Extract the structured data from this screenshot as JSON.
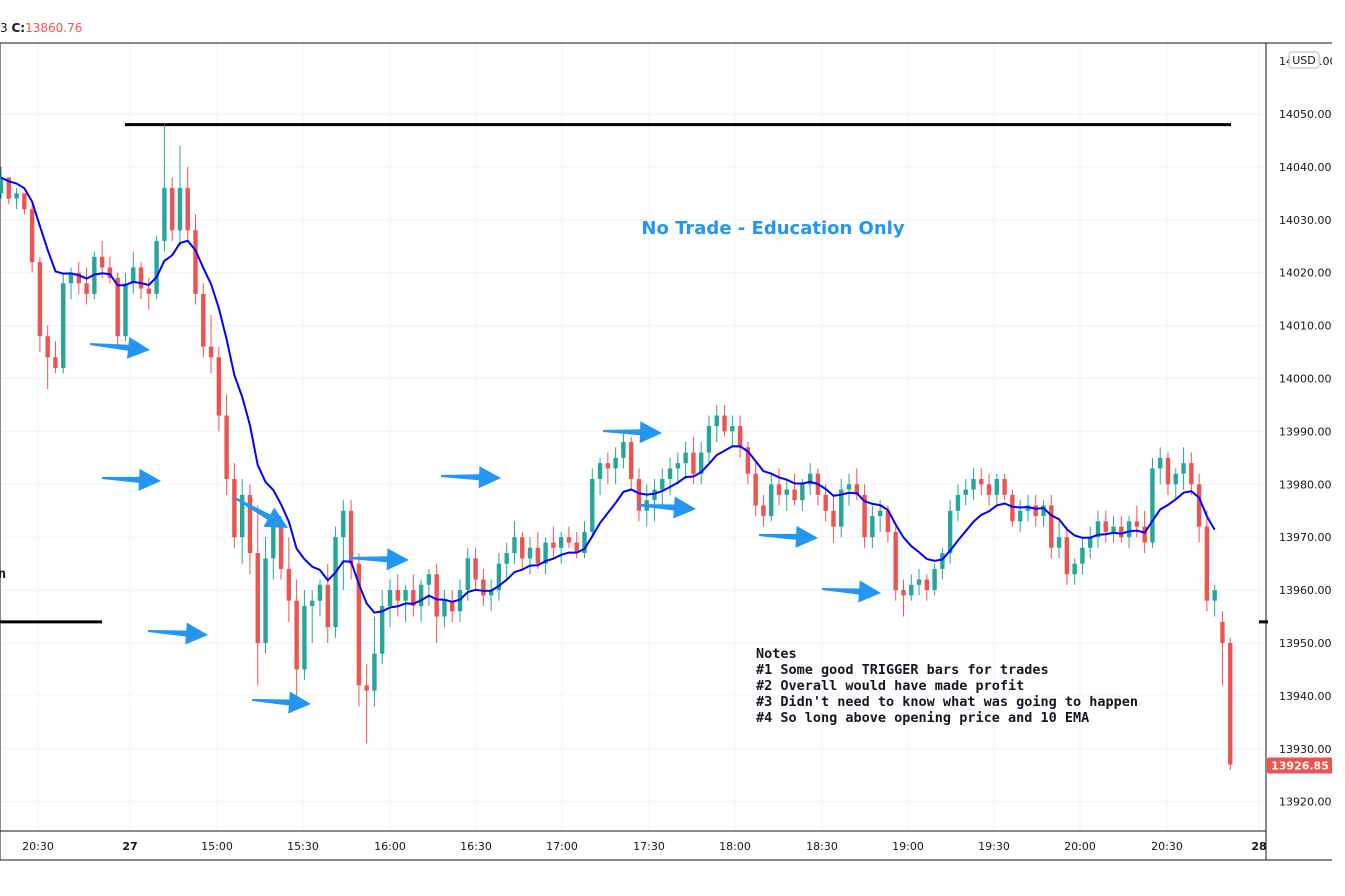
{
  "header": {
    "close_label": "C:",
    "close_value": "13860.76",
    "cut_prefix": "3"
  },
  "currency": "USD",
  "colors": {
    "up": "#26a69a",
    "down": "#ef5350",
    "ema": "#0000ff",
    "level": "#000000",
    "arrow": "#2196f3",
    "grid": "#f0f3fa",
    "annotation": "#2196f3"
  },
  "chart_data": {
    "type": "candlestick",
    "title": "",
    "y_ticks": [
      "14050.00",
      "14040.00",
      "14030.00",
      "14020.00",
      "14010.00",
      "14000.00",
      "13990.00",
      "13980.00",
      "13970.00",
      "13960.00",
      "13950.00",
      "13940.00",
      "13930.00",
      "13920.00"
    ],
    "x_ticks": [
      "20:30",
      "27",
      "15:00",
      "15:30",
      "16:00",
      "16:30",
      "17:00",
      "17:30",
      "18:00",
      "18:30",
      "19:00",
      "19:30",
      "20:00",
      "20:30",
      "28"
    ],
    "ylim": [
      13915,
      14060
    ],
    "last_price": "13926.85",
    "annotations": {
      "title": "No Trade - Education Only",
      "notes": [
        "Notes",
        "#1  Some good TRIGGER bars for trades",
        "#2  Overall would have made profit",
        "#3  Didn't need to know what was going to happen",
        "#4  So long above opening price and 10 EMA"
      ],
      "left_edge_text": "n"
    },
    "levels": [
      {
        "price": 14048
      },
      {
        "price": 13954
      }
    ],
    "series": [
      {
        "name": "10 EMA",
        "type": "line"
      }
    ],
    "candles": [
      {
        "o": 14035,
        "h": 14040,
        "l": 14034,
        "c": 14038
      },
      {
        "o": 14038,
        "h": 14038,
        "l": 14033,
        "c": 14034
      },
      {
        "o": 14034,
        "h": 14036,
        "l": 14032,
        "c": 14035
      },
      {
        "o": 14035,
        "h": 14035,
        "l": 14031,
        "c": 14032
      },
      {
        "o": 14032,
        "h": 14033,
        "l": 14020,
        "c": 14022
      },
      {
        "o": 14022,
        "h": 14023,
        "l": 14005,
        "c": 14008
      },
      {
        "o": 14008,
        "h": 14010,
        "l": 13998,
        "c": 14004
      },
      {
        "o": 14004,
        "h": 14007,
        "l": 14001,
        "c": 14002
      },
      {
        "o": 14002,
        "h": 14020,
        "l": 14001,
        "c": 14018
      },
      {
        "o": 14018,
        "h": 14021,
        "l": 14015,
        "c": 14020
      },
      {
        "o": 14020,
        "h": 14022,
        "l": 14016,
        "c": 14018
      },
      {
        "o": 14018,
        "h": 14021,
        "l": 14014,
        "c": 14016
      },
      {
        "o": 14016,
        "h": 14024,
        "l": 14015,
        "c": 14023
      },
      {
        "o": 14023,
        "h": 14026,
        "l": 14019,
        "c": 14021
      },
      {
        "o": 14021,
        "h": 14023,
        "l": 14018,
        "c": 14019
      },
      {
        "o": 14019,
        "h": 14020,
        "l": 14006,
        "c": 14008
      },
      {
        "o": 14008,
        "h": 14020,
        "l": 14007,
        "c": 14018
      },
      {
        "o": 14018,
        "h": 14024,
        "l": 14016,
        "c": 14021
      },
      {
        "o": 14021,
        "h": 14022,
        "l": 14015,
        "c": 14017
      },
      {
        "o": 14017,
        "h": 14019,
        "l": 14013,
        "c": 14016
      },
      {
        "o": 14016,
        "h": 14027,
        "l": 14015,
        "c": 14026
      },
      {
        "o": 14026,
        "h": 14048,
        "l": 14024,
        "c": 14036
      },
      {
        "o": 14036,
        "h": 14038,
        "l": 14026,
        "c": 14028
      },
      {
        "o": 14028,
        "h": 14044,
        "l": 14025,
        "c": 14036
      },
      {
        "o": 14036,
        "h": 14040,
        "l": 14026,
        "c": 14028
      },
      {
        "o": 14028,
        "h": 14031,
        "l": 14014,
        "c": 14016
      },
      {
        "o": 14016,
        "h": 14018,
        "l": 14004,
        "c": 14006
      },
      {
        "o": 14006,
        "h": 14012,
        "l": 14001,
        "c": 14004
      },
      {
        "o": 14004,
        "h": 14006,
        "l": 13990,
        "c": 13993
      },
      {
        "o": 13993,
        "h": 13997,
        "l": 13978,
        "c": 13981
      },
      {
        "o": 13981,
        "h": 13984,
        "l": 13968,
        "c": 13970
      },
      {
        "o": 13970,
        "h": 13981,
        "l": 13965,
        "c": 13978
      },
      {
        "o": 13978,
        "h": 13980,
        "l": 13963,
        "c": 13967
      },
      {
        "o": 13967,
        "h": 13976,
        "l": 13942,
        "c": 13950
      },
      {
        "o": 13950,
        "h": 13970,
        "l": 13948,
        "c": 13966
      },
      {
        "o": 13966,
        "h": 13975,
        "l": 13962,
        "c": 13972
      },
      {
        "o": 13972,
        "h": 13974,
        "l": 13962,
        "c": 13964
      },
      {
        "o": 13964,
        "h": 13970,
        "l": 13954,
        "c": 13958
      },
      {
        "o": 13958,
        "h": 13962,
        "l": 13940,
        "c": 13945
      },
      {
        "o": 13945,
        "h": 13960,
        "l": 13943,
        "c": 13957
      },
      {
        "o": 13957,
        "h": 13960,
        "l": 13950,
        "c": 13958
      },
      {
        "o": 13958,
        "h": 13962,
        "l": 13955,
        "c": 13961
      },
      {
        "o": 13961,
        "h": 13965,
        "l": 13950,
        "c": 13953
      },
      {
        "o": 13953,
        "h": 13972,
        "l": 13951,
        "c": 13970
      },
      {
        "o": 13970,
        "h": 13977,
        "l": 13960,
        "c": 13975
      },
      {
        "o": 13975,
        "h": 13977,
        "l": 13962,
        "c": 13965
      },
      {
        "o": 13965,
        "h": 13967,
        "l": 13938,
        "c": 13942
      },
      {
        "o": 13942,
        "h": 13946,
        "l": 13931,
        "c": 13941
      },
      {
        "o": 13941,
        "h": 13955,
        "l": 13938,
        "c": 13948
      },
      {
        "o": 13948,
        "h": 13960,
        "l": 13946,
        "c": 13957
      },
      {
        "o": 13957,
        "h": 13962,
        "l": 13953,
        "c": 13960
      },
      {
        "o": 13960,
        "h": 13963,
        "l": 13955,
        "c": 13958
      },
      {
        "o": 13958,
        "h": 13961,
        "l": 13954,
        "c": 13960
      },
      {
        "o": 13960,
        "h": 13963,
        "l": 13955,
        "c": 13957
      },
      {
        "o": 13957,
        "h": 13962,
        "l": 13954,
        "c": 13961
      },
      {
        "o": 13961,
        "h": 13964,
        "l": 13957,
        "c": 13963
      },
      {
        "o": 13963,
        "h": 13965,
        "l": 13950,
        "c": 13955
      },
      {
        "o": 13955,
        "h": 13960,
        "l": 13953,
        "c": 13958
      },
      {
        "o": 13958,
        "h": 13960,
        "l": 13954,
        "c": 13956
      },
      {
        "o": 13956,
        "h": 13962,
        "l": 13954,
        "c": 13960
      },
      {
        "o": 13960,
        "h": 13968,
        "l": 13958,
        "c": 13966
      },
      {
        "o": 13966,
        "h": 13968,
        "l": 13960,
        "c": 13962
      },
      {
        "o": 13962,
        "h": 13964,
        "l": 13957,
        "c": 13959
      },
      {
        "o": 13959,
        "h": 13962,
        "l": 13956,
        "c": 13960
      },
      {
        "o": 13960,
        "h": 13967,
        "l": 13958,
        "c": 13965
      },
      {
        "o": 13965,
        "h": 13969,
        "l": 13962,
        "c": 13967
      },
      {
        "o": 13967,
        "h": 13973,
        "l": 13965,
        "c": 13970
      },
      {
        "o": 13970,
        "h": 13971,
        "l": 13964,
        "c": 13966
      },
      {
        "o": 13966,
        "h": 13970,
        "l": 13963,
        "c": 13968
      },
      {
        "o": 13968,
        "h": 13971,
        "l": 13964,
        "c": 13965
      },
      {
        "o": 13965,
        "h": 13970,
        "l": 13963,
        "c": 13969
      },
      {
        "o": 13969,
        "h": 13972,
        "l": 13966,
        "c": 13968
      },
      {
        "o": 13968,
        "h": 13971,
        "l": 13965,
        "c": 13970
      },
      {
        "o": 13970,
        "h": 13972,
        "l": 13968,
        "c": 13969
      },
      {
        "o": 13969,
        "h": 13971,
        "l": 13966,
        "c": 13967
      },
      {
        "o": 13967,
        "h": 13973,
        "l": 13966,
        "c": 13971
      },
      {
        "o": 13971,
        "h": 13983,
        "l": 13970,
        "c": 13981
      },
      {
        "o": 13981,
        "h": 13985,
        "l": 13978,
        "c": 13984
      },
      {
        "o": 13984,
        "h": 13986,
        "l": 13980,
        "c": 13983
      },
      {
        "o": 13983,
        "h": 13987,
        "l": 13980,
        "c": 13985
      },
      {
        "o": 13985,
        "h": 13990,
        "l": 13983,
        "c": 13988
      },
      {
        "o": 13988,
        "h": 13989,
        "l": 13979,
        "c": 13981
      },
      {
        "o": 13981,
        "h": 13983,
        "l": 13973,
        "c": 13975
      },
      {
        "o": 13975,
        "h": 13980,
        "l": 13972,
        "c": 13977
      },
      {
        "o": 13977,
        "h": 13981,
        "l": 13973,
        "c": 13979
      },
      {
        "o": 13979,
        "h": 13983,
        "l": 13976,
        "c": 13981
      },
      {
        "o": 13981,
        "h": 13985,
        "l": 13978,
        "c": 13983
      },
      {
        "o": 13983,
        "h": 13986,
        "l": 13980,
        "c": 13984
      },
      {
        "o": 13984,
        "h": 13988,
        "l": 13981,
        "c": 13986
      },
      {
        "o": 13986,
        "h": 13989,
        "l": 13980,
        "c": 13982
      },
      {
        "o": 13982,
        "h": 13988,
        "l": 13980,
        "c": 13986
      },
      {
        "o": 13986,
        "h": 13993,
        "l": 13984,
        "c": 13991
      },
      {
        "o": 13991,
        "h": 13995,
        "l": 13988,
        "c": 13993
      },
      {
        "o": 13993,
        "h": 13995,
        "l": 13989,
        "c": 13990
      },
      {
        "o": 13990,
        "h": 13993,
        "l": 13987,
        "c": 13991
      },
      {
        "o": 13991,
        "h": 13993,
        "l": 13985,
        "c": 13987
      },
      {
        "o": 13987,
        "h": 13988,
        "l": 13980,
        "c": 13982
      },
      {
        "o": 13982,
        "h": 13984,
        "l": 13974,
        "c": 13976
      },
      {
        "o": 13976,
        "h": 13978,
        "l": 13972,
        "c": 13974
      },
      {
        "o": 13974,
        "h": 13982,
        "l": 13973,
        "c": 13980
      },
      {
        "o": 13980,
        "h": 13983,
        "l": 13976,
        "c": 13978
      },
      {
        "o": 13978,
        "h": 13981,
        "l": 13975,
        "c": 13979
      },
      {
        "o": 13979,
        "h": 13982,
        "l": 13976,
        "c": 13977
      },
      {
        "o": 13977,
        "h": 13981,
        "l": 13975,
        "c": 13980
      },
      {
        "o": 13980,
        "h": 13984,
        "l": 13978,
        "c": 13982
      },
      {
        "o": 13982,
        "h": 13983,
        "l": 13976,
        "c": 13978
      },
      {
        "o": 13978,
        "h": 13980,
        "l": 13973,
        "c": 13975
      },
      {
        "o": 13975,
        "h": 13978,
        "l": 13969,
        "c": 13972
      },
      {
        "o": 13972,
        "h": 13981,
        "l": 13970,
        "c": 13979
      },
      {
        "o": 13979,
        "h": 13982,
        "l": 13976,
        "c": 13980
      },
      {
        "o": 13980,
        "h": 13983,
        "l": 13977,
        "c": 13978
      },
      {
        "o": 13978,
        "h": 13980,
        "l": 13968,
        "c": 13970
      },
      {
        "o": 13970,
        "h": 13976,
        "l": 13968,
        "c": 13974
      },
      {
        "o": 13974,
        "h": 13977,
        "l": 13971,
        "c": 13975
      },
      {
        "o": 13975,
        "h": 13976,
        "l": 13969,
        "c": 13971
      },
      {
        "o": 13971,
        "h": 13972,
        "l": 13958,
        "c": 13960
      },
      {
        "o": 13960,
        "h": 13962,
        "l": 13955,
        "c": 13959
      },
      {
        "o": 13959,
        "h": 13963,
        "l": 13958,
        "c": 13961
      },
      {
        "o": 13961,
        "h": 13964,
        "l": 13959,
        "c": 13962
      },
      {
        "o": 13962,
        "h": 13963,
        "l": 13958,
        "c": 13960
      },
      {
        "o": 13960,
        "h": 13965,
        "l": 13959,
        "c": 13964
      },
      {
        "o": 13964,
        "h": 13968,
        "l": 13962,
        "c": 13967
      },
      {
        "o": 13967,
        "h": 13977,
        "l": 13965,
        "c": 13975
      },
      {
        "o": 13975,
        "h": 13980,
        "l": 13973,
        "c": 13978
      },
      {
        "o": 13978,
        "h": 13981,
        "l": 13976,
        "c": 13979
      },
      {
        "o": 13979,
        "h": 13983,
        "l": 13977,
        "c": 13981
      },
      {
        "o": 13981,
        "h": 13983,
        "l": 13978,
        "c": 13980
      },
      {
        "o": 13980,
        "h": 13982,
        "l": 13976,
        "c": 13978
      },
      {
        "o": 13978,
        "h": 13982,
        "l": 13976,
        "c": 13981
      },
      {
        "o": 13981,
        "h": 13982,
        "l": 13977,
        "c": 13978
      },
      {
        "o": 13978,
        "h": 13979,
        "l": 13972,
        "c": 13973
      },
      {
        "o": 13973,
        "h": 13977,
        "l": 13971,
        "c": 13975
      },
      {
        "o": 13975,
        "h": 13978,
        "l": 13973,
        "c": 13976
      },
      {
        "o": 13976,
        "h": 13978,
        "l": 13972,
        "c": 13974
      },
      {
        "o": 13974,
        "h": 13977,
        "l": 13972,
        "c": 13976
      },
      {
        "o": 13976,
        "h": 13978,
        "l": 13966,
        "c": 13968
      },
      {
        "o": 13968,
        "h": 13973,
        "l": 13966,
        "c": 13970
      },
      {
        "o": 13970,
        "h": 13972,
        "l": 13961,
        "c": 13963
      },
      {
        "o": 13963,
        "h": 13966,
        "l": 13961,
        "c": 13965
      },
      {
        "o": 13965,
        "h": 13970,
        "l": 13963,
        "c": 13968
      },
      {
        "o": 13968,
        "h": 13972,
        "l": 13966,
        "c": 13970
      },
      {
        "o": 13970,
        "h": 13975,
        "l": 13968,
        "c": 13973
      },
      {
        "o": 13973,
        "h": 13975,
        "l": 13969,
        "c": 13971
      },
      {
        "o": 13971,
        "h": 13974,
        "l": 13969,
        "c": 13972
      },
      {
        "o": 13972,
        "h": 13974,
        "l": 13969,
        "c": 13970
      },
      {
        "o": 13970,
        "h": 13974,
        "l": 13968,
        "c": 13973
      },
      {
        "o": 13973,
        "h": 13976,
        "l": 13970,
        "c": 13972
      },
      {
        "o": 13972,
        "h": 13975,
        "l": 13967,
        "c": 13969
      },
      {
        "o": 13969,
        "h": 13985,
        "l": 13968,
        "c": 13983
      },
      {
        "o": 13983,
        "h": 13987,
        "l": 13980,
        "c": 13985
      },
      {
        "o": 13985,
        "h": 13986,
        "l": 13978,
        "c": 13980
      },
      {
        "o": 13980,
        "h": 13983,
        "l": 13977,
        "c": 13982
      },
      {
        "o": 13982,
        "h": 13987,
        "l": 13979,
        "c": 13984
      },
      {
        "o": 13984,
        "h": 13986,
        "l": 13978,
        "c": 13980
      },
      {
        "o": 13980,
        "h": 13982,
        "l": 13969,
        "c": 13972
      },
      {
        "o": 13972,
        "h": 13975,
        "l": 13956,
        "c": 13958
      },
      {
        "o": 13958,
        "h": 13961,
        "l": 13955,
        "c": 13960
      },
      {
        "o": 13954,
        "h": 13956,
        "l": 13942,
        "c": 13950
      },
      {
        "o": 13950,
        "h": 13951,
        "l": 13926,
        "c": 13927
      }
    ]
  }
}
